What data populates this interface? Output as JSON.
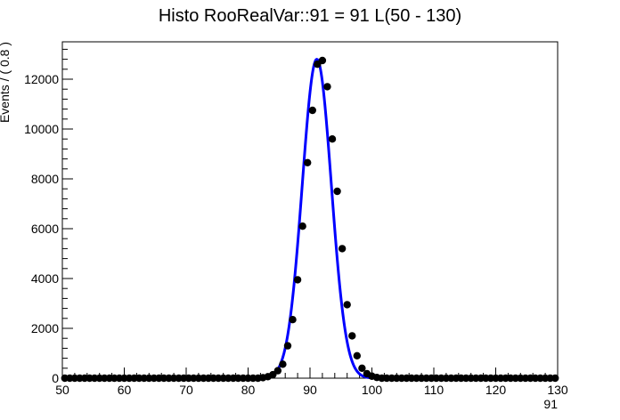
{
  "chart_data": {
    "type": "scatter",
    "title": "Histo RooRealVar::91 = 91  L(50 - 130)",
    "xlabel": "91",
    "ylabel": "Events / ( 0.8 )",
    "xlim": [
      50,
      130
    ],
    "ylim": [
      0,
      13500
    ],
    "x_ticks": [
      50,
      60,
      70,
      80,
      90,
      100,
      110,
      120,
      130
    ],
    "y_ticks": [
      0,
      2000,
      4000,
      6000,
      8000,
      10000,
      12000
    ],
    "grid": false,
    "legend": "none",
    "series": [
      {
        "kind": "points",
        "color": "#000000",
        "points": [
          [
            82.0,
            20
          ],
          [
            82.8,
            60
          ],
          [
            83.6,
            140
          ],
          [
            84.4,
            300
          ],
          [
            85.2,
            560
          ],
          [
            86.0,
            1300
          ],
          [
            86.8,
            2350
          ],
          [
            87.6,
            3950
          ],
          [
            88.4,
            6100
          ],
          [
            89.2,
            8650
          ],
          [
            90.0,
            10750
          ],
          [
            90.8,
            12600
          ],
          [
            91.6,
            12750
          ],
          [
            92.4,
            11700
          ],
          [
            93.2,
            9600
          ],
          [
            94.0,
            7500
          ],
          [
            94.8,
            5200
          ],
          [
            95.6,
            2950
          ],
          [
            96.4,
            1700
          ],
          [
            97.2,
            900
          ],
          [
            98.0,
            400
          ],
          [
            98.8,
            180
          ],
          [
            99.6,
            80
          ],
          [
            100.4,
            30
          ]
        ]
      },
      {
        "kind": "curve",
        "color": "#0000ff",
        "model": "gaussian",
        "mean": 91.1,
        "sigma": 2.35,
        "peak": 12800
      }
    ]
  }
}
